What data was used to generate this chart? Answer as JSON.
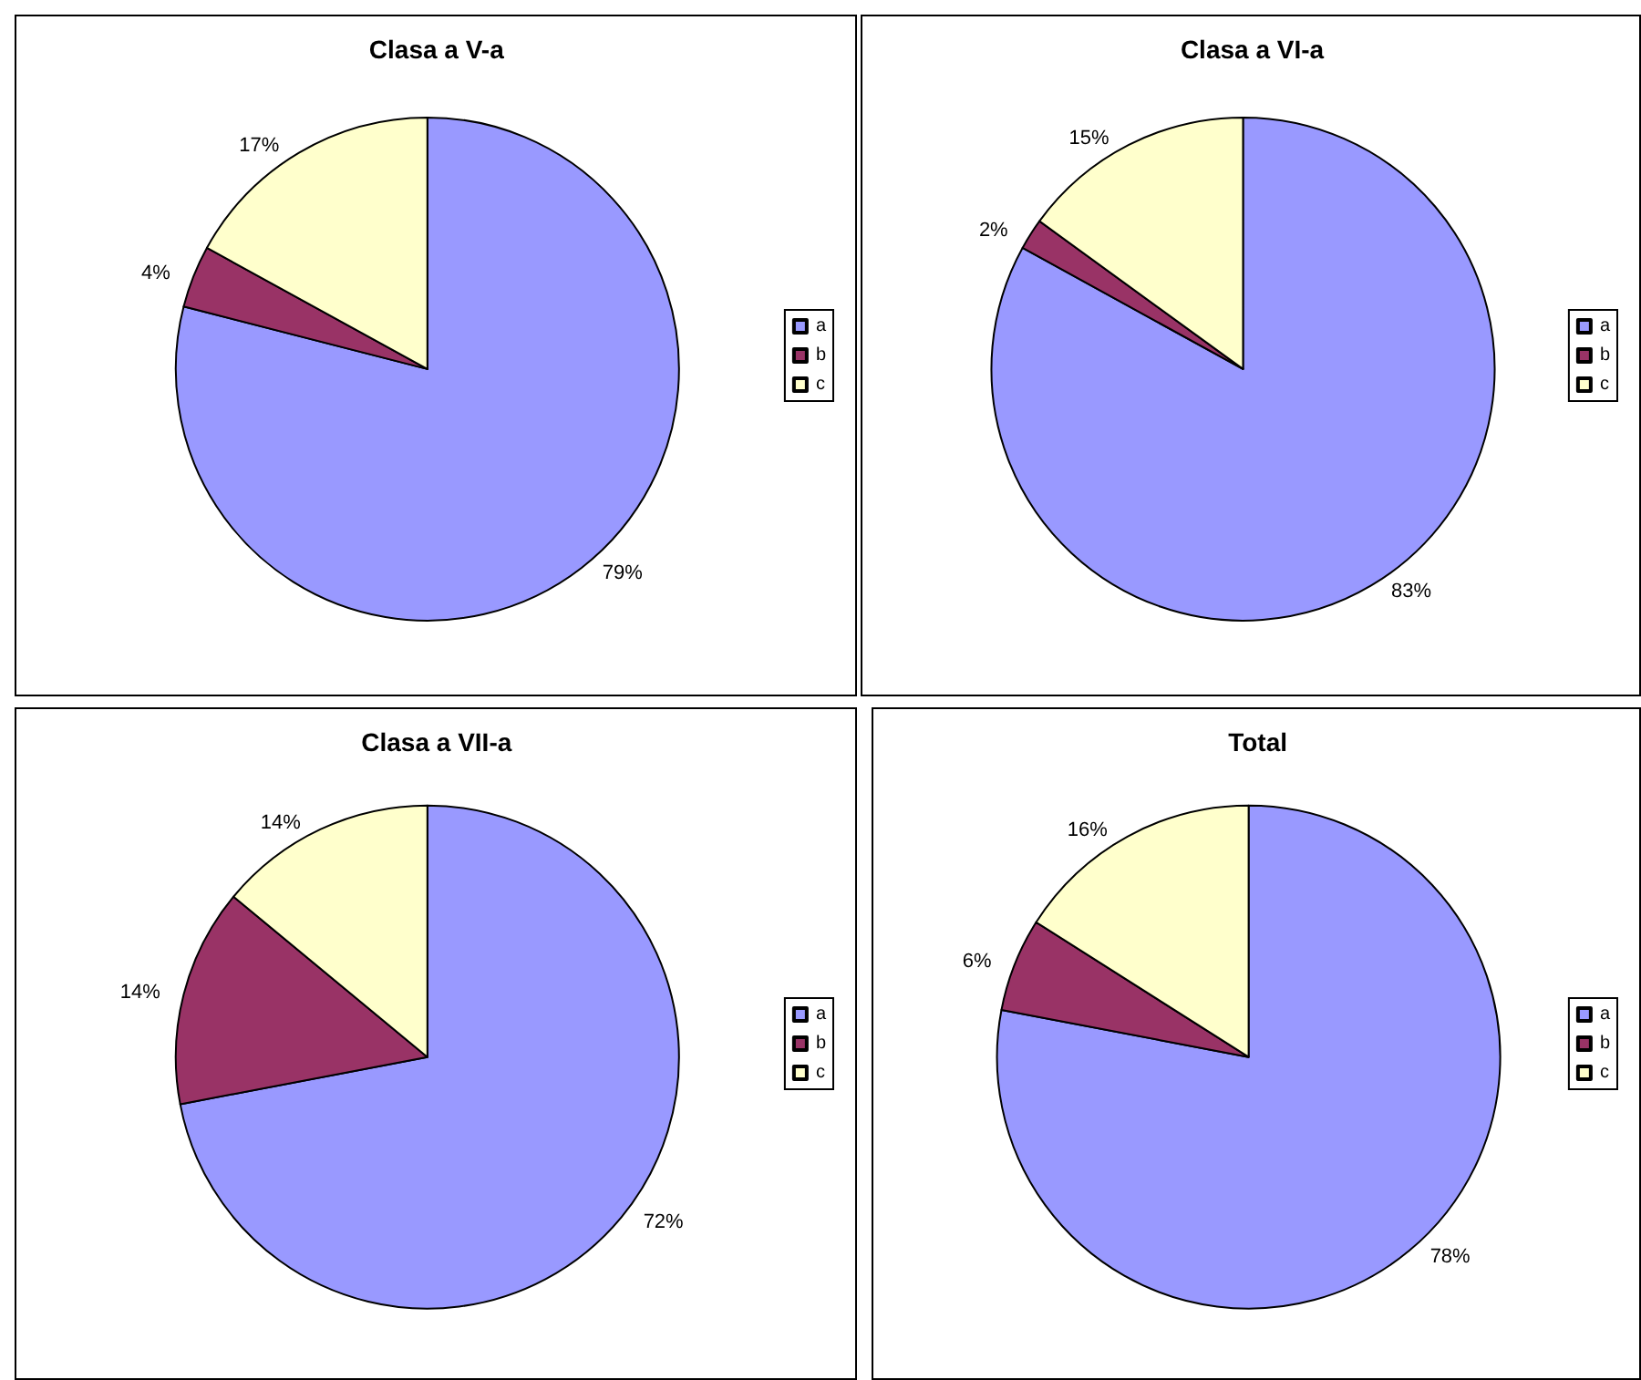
{
  "chart_data": [
    {
      "type": "pie",
      "title": "Clasa a V-a",
      "categories": [
        "a",
        "b",
        "c"
      ],
      "values": [
        79,
        4,
        17
      ],
      "value_labels": [
        "79%",
        "4%",
        "17%"
      ],
      "colors": [
        "#9999ff",
        "#993366",
        "#ffffcc"
      ],
      "legend": "right"
    },
    {
      "type": "pie",
      "title": "Clasa a VI-a",
      "categories": [
        "a",
        "b",
        "c"
      ],
      "values": [
        83,
        2,
        15
      ],
      "value_labels": [
        "83%",
        "2%",
        "15%"
      ],
      "colors": [
        "#9999ff",
        "#993366",
        "#ffffcc"
      ],
      "legend": "right"
    },
    {
      "type": "pie",
      "title": "Clasa a VII-a",
      "categories": [
        "a",
        "b",
        "c"
      ],
      "values": [
        72,
        14,
        14
      ],
      "value_labels": [
        "72%",
        "14%",
        "14%"
      ],
      "colors": [
        "#9999ff",
        "#993366",
        "#ffffcc"
      ],
      "legend": "right"
    },
    {
      "type": "pie",
      "title": "Total",
      "categories": [
        "a",
        "b",
        "c"
      ],
      "values": [
        78,
        6,
        16
      ],
      "value_labels": [
        "78%",
        "6%",
        "16%"
      ],
      "colors": [
        "#9999ff",
        "#993366",
        "#ffffcc"
      ],
      "legend": "right"
    }
  ]
}
